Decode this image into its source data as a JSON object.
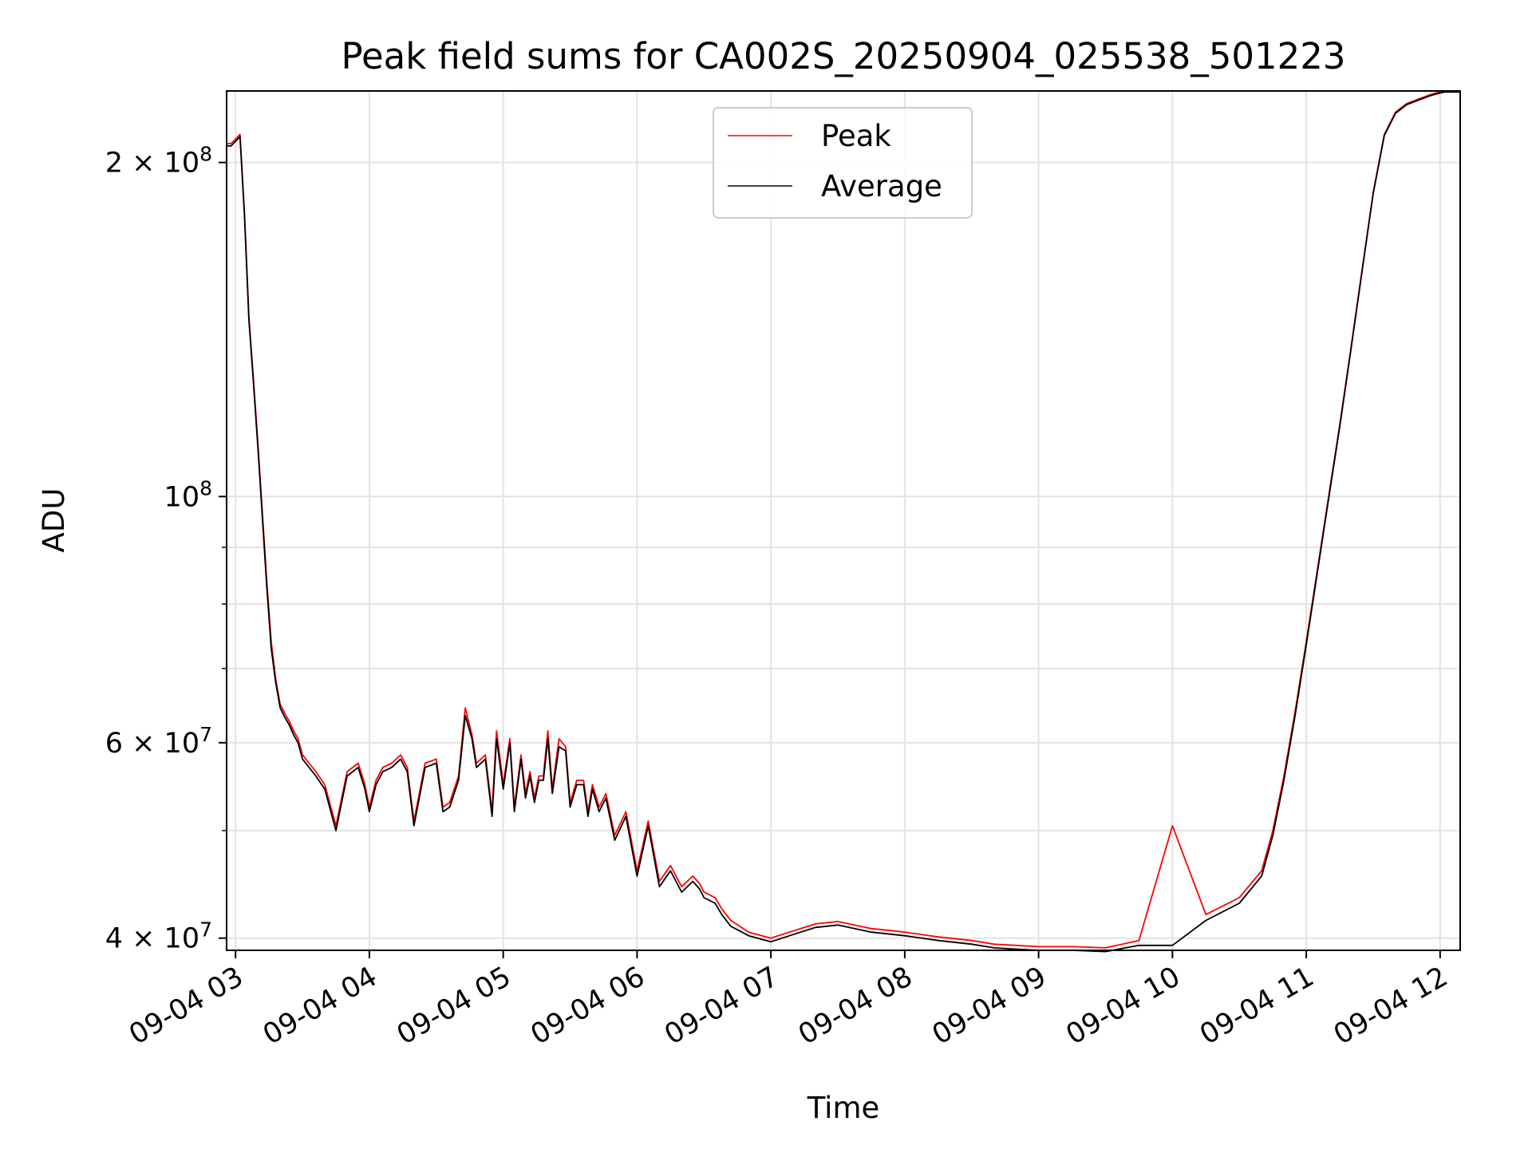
{
  "chart_data": {
    "type": "line",
    "title": "Peak field sums for CA002S_20250904_025538_501223",
    "xlabel": "Time",
    "ylabel": "ADU",
    "yscale": "log",
    "ylim": [
      39000000,
      232000000
    ],
    "xlim": [
      "09-04 02:56",
      "09-04 12:09"
    ],
    "grid": true,
    "legend_position": "top-center",
    "x_ticks": [
      "09-04 03",
      "09-04 04",
      "09-04 05",
      "09-04 06",
      "09-04 07",
      "09-04 08",
      "09-04 09",
      "09-04 10",
      "09-04 11",
      "09-04 12"
    ],
    "y_ticks": [
      {
        "value": 40000000,
        "mantissa": "4",
        "exponent": "7"
      },
      {
        "value": 60000000,
        "mantissa": "6",
        "exponent": "7"
      },
      {
        "value": 100000000,
        "mantissa": "",
        "exponent": "8"
      },
      {
        "value": 200000000,
        "mantissa": "2",
        "exponent": "8"
      }
    ],
    "y_minor_ticks": [
      50000000,
      70000000,
      80000000,
      90000000
    ],
    "times": [
      "09-04 02:56",
      "09-04 02:58",
      "09-04 03:00",
      "09-04 03:02",
      "09-04 03:04",
      "09-04 03:06",
      "09-04 03:08",
      "09-04 03:10",
      "09-04 03:12",
      "09-04 03:14",
      "09-04 03:16",
      "09-04 03:18",
      "09-04 03:20",
      "09-04 03:22",
      "09-04 03:24",
      "09-04 03:26",
      "09-04 03:28",
      "09-04 03:30",
      "09-04 03:33",
      "09-04 03:36",
      "09-04 03:40",
      "09-04 03:45",
      "09-04 03:50",
      "09-04 03:55",
      "09-04 03:58",
      "09-04 04:00",
      "09-04 04:03",
      "09-04 04:06",
      "09-04 04:10",
      "09-04 04:14",
      "09-04 04:17",
      "09-04 04:20",
      "09-04 04:25",
      "09-04 04:30",
      "09-04 04:33",
      "09-04 04:36",
      "09-04 04:40",
      "09-04 04:43",
      "09-04 04:46",
      "09-04 04:48",
      "09-04 04:52",
      "09-04 04:55",
      "09-04 04:57",
      "09-04 05:00",
      "09-04 05:03",
      "09-04 05:05",
      "09-04 05:08",
      "09-04 05:10",
      "09-04 05:12",
      "09-04 05:14",
      "09-04 05:16",
      "09-04 05:18",
      "09-04 05:20",
      "09-04 05:22",
      "09-04 05:25",
      "09-04 05:28",
      "09-04 05:30",
      "09-04 05:33",
      "09-04 05:36",
      "09-04 05:38",
      "09-04 05:40",
      "09-04 05:43",
      "09-04 05:46",
      "09-04 05:50",
      "09-04 05:55",
      "09-04 06:00",
      "09-04 06:05",
      "09-04 06:10",
      "09-04 06:15",
      "09-04 06:20",
      "09-04 06:25",
      "09-04 06:28",
      "09-04 06:30",
      "09-04 06:35",
      "09-04 06:38",
      "09-04 06:42",
      "09-04 06:46",
      "09-04 06:50",
      "09-04 07:00",
      "09-04 07:10",
      "09-04 07:20",
      "09-04 07:30",
      "09-04 07:45",
      "09-04 08:00",
      "09-04 08:15",
      "09-04 08:30",
      "09-04 08:40",
      "09-04 08:50",
      "09-04 09:00",
      "09-04 09:15",
      "09-04 09:30",
      "09-04 09:45",
      "09-04 10:00",
      "09-04 10:15",
      "09-04 10:30",
      "09-04 10:40",
      "09-04 10:45",
      "09-04 10:50",
      "09-04 10:55",
      "09-04 11:00",
      "09-04 11:05",
      "09-04 11:10",
      "09-04 11:15",
      "09-04 11:20",
      "09-04 11:25",
      "09-04 11:30",
      "09-04 11:35",
      "09-04 11:40",
      "09-04 11:45",
      "09-04 11:50",
      "09-04 11:55",
      "09-04 11:58",
      "09-04 12:00",
      "09-04 12:02",
      "09-04 12:05",
      "09-04 12:09"
    ],
    "series": [
      {
        "name": "Peak",
        "color": "#ff0000",
        "values": [
          208000000,
          208000000,
          210000000,
          212000000,
          180000000,
          145000000,
          128000000,
          112000000,
          97000000,
          84000000,
          74000000,
          68500000,
          65000000,
          63800000,
          62800000,
          61500000,
          60500000,
          58500000,
          57500000,
          56500000,
          55000000,
          50500000,
          56500000,
          57500000,
          55000000,
          52500000,
          55500000,
          57000000,
          57500000,
          58500000,
          57000000,
          51000000,
          57500000,
          58000000,
          52500000,
          53000000,
          56000000,
          64500000,
          61000000,
          57500000,
          58500000,
          52000000,
          61500000,
          55000000,
          60500000,
          52500000,
          58500000,
          54000000,
          56500000,
          53500000,
          56000000,
          56000000,
          61500000,
          54500000,
          60500000,
          59500000,
          53000000,
          55500000,
          55500000,
          52000000,
          55000000,
          52500000,
          54000000,
          49500000,
          52000000,
          46000000,
          51000000,
          45000000,
          46500000,
          44500000,
          45500000,
          44800000,
          44000000,
          43500000,
          42500000,
          41500000,
          41000000,
          40500000,
          40000000,
          40600000,
          41200000,
          41400000,
          40800000,
          40500000,
          40100000,
          39800000,
          39500000,
          39400000,
          39300000,
          39300000,
          39200000,
          39800000,
          50500000,
          42000000,
          43500000,
          46000000,
          50000000,
          56000000,
          64000000,
          74000000,
          86000000,
          100000000,
          116000000,
          136000000,
          160000000,
          188000000,
          212000000,
          222000000,
          226000000,
          228000000,
          230000000,
          231000000,
          231500000,
          232000000,
          232000000,
          232000000
        ]
      },
      {
        "name": "Average",
        "color": "#000000",
        "values": [
          207000000,
          207000000,
          209000000,
          211000000,
          179000000,
          144000000,
          127000000,
          111000000,
          96000000,
          83000000,
          73000000,
          68000000,
          64500000,
          63300000,
          62300000,
          61000000,
          60000000,
          58000000,
          57000000,
          56000000,
          54500000,
          50000000,
          56000000,
          57000000,
          54500000,
          52000000,
          55000000,
          56500000,
          57000000,
          58000000,
          56500000,
          50500000,
          57000000,
          57500000,
          52000000,
          52500000,
          55500000,
          63500000,
          60500000,
          57000000,
          58000000,
          51500000,
          60500000,
          54500000,
          60000000,
          52000000,
          58000000,
          53500000,
          56000000,
          53000000,
          55500000,
          55500000,
          60500000,
          54000000,
          59500000,
          59000000,
          52500000,
          55000000,
          55000000,
          51500000,
          54500000,
          52000000,
          53500000,
          49000000,
          51500000,
          45500000,
          50500000,
          44500000,
          46000000,
          44000000,
          45000000,
          44300000,
          43500000,
          43000000,
          42000000,
          41000000,
          40600000,
          40200000,
          39700000,
          40300000,
          40900000,
          41100000,
          40500000,
          40200000,
          39800000,
          39500000,
          39200000,
          39100000,
          39000000,
          39000000,
          38900000,
          39400000,
          39400000,
          41500000,
          43000000,
          45500000,
          49500000,
          55500000,
          63500000,
          73500000,
          85500000,
          99500000,
          115500000,
          135500000,
          159500000,
          187500000,
          211500000,
          221500000,
          225500000,
          227500000,
          229500000,
          230500000,
          231000000,
          231500000,
          231500000,
          231500000
        ]
      }
    ]
  }
}
